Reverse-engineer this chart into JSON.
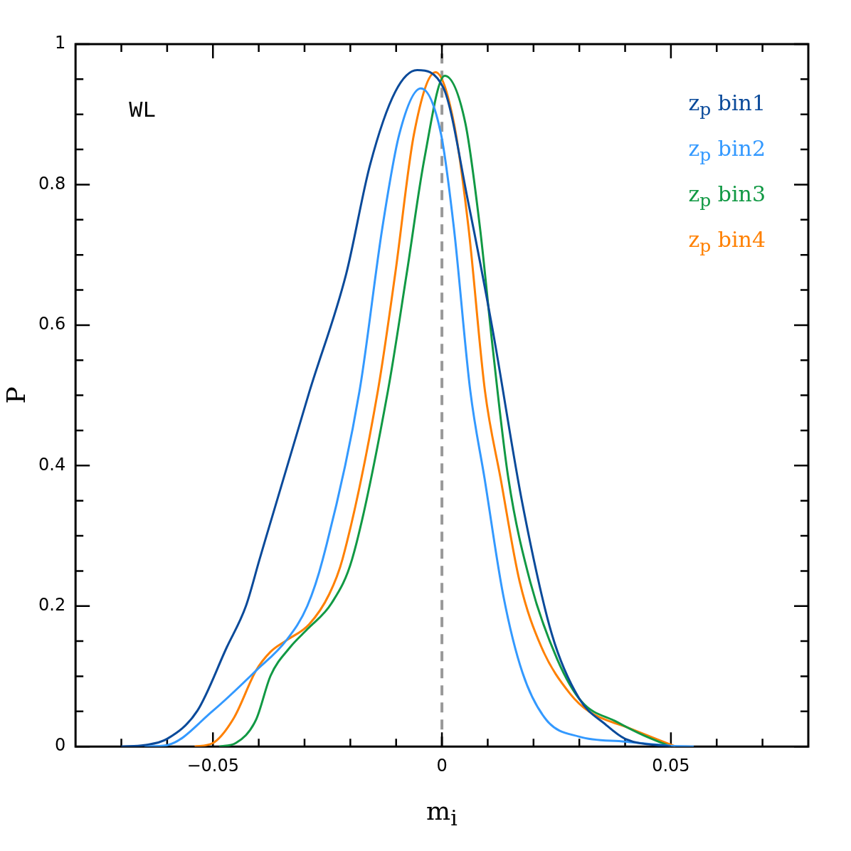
{
  "chart_data": {
    "type": "line",
    "xlabel": "m$_{i}$",
    "ylabel": "P",
    "annotations": [
      "WL"
    ],
    "xlim": [
      -0.08,
      0.08
    ],
    "xticks": [
      {
        "value": -0.07,
        "label": null
      },
      {
        "value": -0.06,
        "label": null
      },
      {
        "value": -0.05,
        "label": "−0.05"
      },
      {
        "value": -0.04,
        "label": null
      },
      {
        "value": -0.03,
        "label": null
      },
      {
        "value": -0.02,
        "label": null
      },
      {
        "value": -0.01,
        "label": null
      },
      0,
      {
        "value": 0.01,
        "label": null
      },
      {
        "value": 0.02,
        "label": null
      },
      {
        "value": 0.03,
        "label": null
      },
      {
        "value": 0.04,
        "label": null
      },
      0.05,
      {
        "value": 0.06,
        "label": null
      },
      {
        "value": 0.07,
        "label": null
      }
    ],
    "ylim": [
      0,
      1
    ],
    "yticks": [
      0,
      {
        "value": 0.05,
        "label": null
      },
      {
        "value": 0.1,
        "label": null
      },
      {
        "value": 0.15,
        "label": null
      },
      0.2,
      {
        "value": 0.25,
        "label": null
      },
      {
        "value": 0.3,
        "label": null
      },
      {
        "value": 0.35,
        "label": null
      },
      0.4,
      {
        "value": 0.45,
        "label": null
      },
      {
        "value": 0.5,
        "label": null
      },
      {
        "value": 0.55,
        "label": null
      },
      0.6,
      {
        "value": 0.65,
        "label": null
      },
      {
        "value": 0.7,
        "label": null
      },
      {
        "value": 0.75,
        "label": null
      },
      0.8,
      {
        "value": 0.85,
        "label": null
      },
      {
        "value": 0.9,
        "label": null
      },
      {
        "value": 0.95,
        "label": null
      },
      1
    ],
    "grid": false,
    "legend": "top right",
    "marker": "none",
    "line_style": "solid",
    "ref_lines": [
      {
        "axis": "x",
        "value": 0,
        "color": "#999999",
        "line_style": "dashed"
      }
    ],
    "series": [
      {
        "name": "z$_{p}$ bin1",
        "color": "#0a4a9a",
        "x": [
          -0.07,
          -0.065,
          -0.06,
          -0.0534,
          -0.047,
          -0.0428,
          -0.0398,
          -0.0289,
          -0.0209,
          -0.0157,
          -0.0102,
          -0.0054,
          0.0003,
          0.0058,
          0.011,
          0.0176,
          0.024,
          0.03,
          0.0358,
          0.04,
          0.05
        ],
        "values": [
          0,
          0.002,
          0.011,
          0.051,
          0.141,
          0.2,
          0.267,
          0.506,
          0.673,
          0.828,
          0.932,
          0.963,
          0.938,
          0.773,
          0.596,
          0.345,
          0.16,
          0.068,
          0.031,
          0.011,
          0
        ]
      },
      {
        "name": "z$_{p}$ bin2",
        "color": "#3399ff",
        "x": [
          -0.065,
          -0.06,
          -0.05,
          -0.0406,
          -0.034,
          -0.0294,
          -0.026,
          -0.018,
          -0.013,
          -0.0093,
          -0.0046,
          -0.0002,
          0.0026,
          0.0062,
          0.0093,
          0.0134,
          0.0176,
          0.0228,
          0.03,
          0.04,
          0.05,
          0.055
        ],
        "values": [
          0,
          0.002,
          0.051,
          0.108,
          0.151,
          0.2,
          0.267,
          0.506,
          0.739,
          0.872,
          0.937,
          0.872,
          0.739,
          0.506,
          0.382,
          0.215,
          0.105,
          0.038,
          0.014,
          0.007,
          0.001,
          0
        ]
      },
      {
        "name": "z$_{p}$ bin3",
        "color": "#119944",
        "x": [
          -0.0486,
          -0.045,
          -0.0406,
          -0.0374,
          -0.0332,
          -0.0294,
          -0.0241,
          -0.0196,
          -0.0118,
          -0.0077,
          -0.0038,
          0.0006,
          0.0051,
          0.0083,
          0.011,
          0.0145,
          0.0193,
          0.0252,
          0.0305,
          0.0382,
          0.044,
          0.05
        ],
        "values": [
          0,
          0.005,
          0.038,
          0.101,
          0.141,
          0.167,
          0.204,
          0.267,
          0.506,
          0.673,
          0.838,
          0.955,
          0.888,
          0.739,
          0.573,
          0.382,
          0.234,
          0.124,
          0.064,
          0.035,
          0.016,
          0
        ]
      },
      {
        "name": "z$_{p}$ bin4",
        "color": "#ff8000",
        "x": [
          -0.054,
          -0.05,
          -0.0454,
          -0.0406,
          -0.0374,
          -0.034,
          -0.029,
          -0.0246,
          -0.0217,
          -0.014,
          -0.0102,
          -0.0061,
          -0.0014,
          0.0026,
          0.0058,
          0.0094,
          0.0128,
          0.017,
          0.0217,
          0.028,
          0.0323,
          0.0406,
          0.051
        ],
        "values": [
          0,
          0.005,
          0.041,
          0.108,
          0.135,
          0.151,
          0.174,
          0.217,
          0.267,
          0.506,
          0.673,
          0.872,
          0.96,
          0.888,
          0.739,
          0.506,
          0.382,
          0.234,
          0.142,
          0.075,
          0.049,
          0.027,
          0
        ]
      }
    ]
  }
}
